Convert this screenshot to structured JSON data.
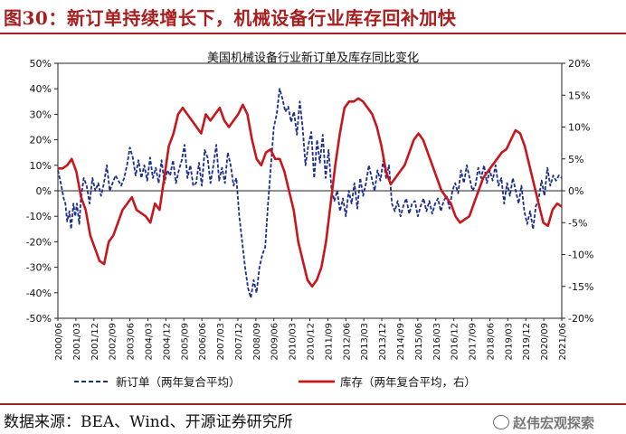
{
  "figure": {
    "title": "图30：新订单持续增长下，机械设备行业库存回补加快",
    "source": "数据来源：BEA、Wind、开源证券研究所",
    "watermark": "赵伟宏观探索",
    "watermark_icon": "wechat-icon"
  },
  "chart_data": {
    "type": "line",
    "title": "美国机械设备行业新订单及库存同比变化",
    "x_labels": [
      "2000/06",
      "2001/03",
      "2001/12",
      "2002/09",
      "2003/06",
      "2004/03",
      "2004/12",
      "2005/09",
      "2006/06",
      "2007/03",
      "2007/12",
      "2008/09",
      "2009/06",
      "2010/03",
      "2010/12",
      "2011/09",
      "2012/06",
      "2013/03",
      "2013/12",
      "2014/09",
      "2015/06",
      "2016/03",
      "2016/12",
      "2017/09",
      "2018/06",
      "2019/03",
      "2019/12",
      "2020/09",
      "2021/06"
    ],
    "left_axis": {
      "ticks": [
        "50%",
        "40%",
        "30%",
        "20%",
        "10%",
        "0%",
        "-10%",
        "-20%",
        "-30%",
        "-40%",
        "-50%"
      ],
      "min": -50,
      "max": 50
    },
    "right_axis": {
      "ticks": [
        "20%",
        "15%",
        "10%",
        "5%",
        "0%",
        "-5%",
        "-10%",
        "-15%",
        "-20%"
      ],
      "min": -20,
      "max": 20
    },
    "legend_position": "bottom",
    "series": [
      {
        "name": "新订单（两年复合平均）",
        "axis": "left",
        "color": "#1c2e8c",
        "style": "dashed",
        "points": [
          [
            0,
            8
          ],
          [
            0.5,
            3
          ],
          [
            1,
            -3
          ],
          [
            1.3,
            -5
          ],
          [
            1.6,
            -12
          ],
          [
            2,
            -8
          ],
          [
            2.3,
            -15
          ],
          [
            2.7,
            -5
          ],
          [
            3,
            -10
          ],
          [
            3.3,
            -5
          ],
          [
            3.7,
            -13
          ],
          [
            4,
            -3
          ],
          [
            4.5,
            5
          ],
          [
            5,
            2
          ],
          [
            5.5,
            -5
          ],
          [
            6,
            5
          ],
          [
            6.5,
            0
          ],
          [
            7,
            3
          ],
          [
            7.5,
            -2
          ],
          [
            8,
            3
          ],
          [
            8.5,
            10
          ],
          [
            9,
            0
          ],
          [
            9.5,
            3
          ],
          [
            10,
            6
          ],
          [
            10.5,
            4
          ],
          [
            11,
            2
          ],
          [
            11.5,
            5
          ],
          [
            12,
            10
          ],
          [
            12.5,
            17
          ],
          [
            13,
            13
          ],
          [
            13.5,
            6
          ],
          [
            14,
            12
          ],
          [
            14.5,
            5
          ],
          [
            15,
            10
          ],
          [
            15.5,
            4
          ],
          [
            16,
            13
          ],
          [
            16.5,
            5
          ],
          [
            17,
            9
          ],
          [
            17.5,
            3
          ],
          [
            18,
            12
          ],
          [
            18.5,
            3
          ],
          [
            19,
            8
          ],
          [
            19.5,
            6
          ],
          [
            20,
            12
          ],
          [
            20.5,
            3
          ],
          [
            21,
            8
          ],
          [
            21.5,
            12
          ],
          [
            22,
            18
          ],
          [
            22.5,
            5
          ],
          [
            23,
            10
          ],
          [
            23.5,
            2
          ],
          [
            24,
            3
          ],
          [
            24.5,
            11
          ],
          [
            25,
            2
          ],
          [
            25.5,
            16
          ],
          [
            26,
            13
          ],
          [
            26.5,
            3
          ],
          [
            27,
            10
          ],
          [
            27.5,
            18
          ],
          [
            28,
            4
          ],
          [
            28.5,
            9
          ],
          [
            29,
            3
          ],
          [
            29.5,
            15
          ],
          [
            30,
            10
          ],
          [
            30.5,
            2
          ],
          [
            31,
            5
          ],
          [
            31.5,
            -10
          ],
          [
            32,
            -20
          ],
          [
            32.5,
            -30
          ],
          [
            33,
            -38
          ],
          [
            33.5,
            -42
          ],
          [
            34,
            -35
          ],
          [
            34.5,
            -40
          ],
          [
            35,
            -30
          ],
          [
            35.5,
            -25
          ],
          [
            36,
            -22
          ],
          [
            36.5,
            -5
          ],
          [
            37,
            10
          ],
          [
            37.5,
            25
          ],
          [
            38,
            30
          ],
          [
            38.5,
            40
          ],
          [
            39,
            36
          ],
          [
            39.5,
            31
          ],
          [
            40,
            33
          ],
          [
            40.5,
            27
          ],
          [
            41,
            31
          ],
          [
            41.5,
            22
          ],
          [
            42,
            35
          ],
          [
            42.5,
            25
          ],
          [
            43,
            10
          ],
          [
            43.5,
            18
          ],
          [
            44,
            23
          ],
          [
            44.5,
            5
          ],
          [
            45,
            20
          ],
          [
            45.5,
            11
          ],
          [
            46,
            22
          ],
          [
            46.5,
            5
          ],
          [
            47,
            16
          ],
          [
            47.5,
            1
          ],
          [
            48,
            -4
          ],
          [
            48.5,
            0
          ],
          [
            49,
            -8
          ],
          [
            49.5,
            -3
          ],
          [
            50,
            -10
          ],
          [
            50.5,
            0
          ],
          [
            51,
            -5
          ],
          [
            51.5,
            3
          ],
          [
            52,
            -7
          ],
          [
            52.5,
            5
          ],
          [
            53,
            -2
          ],
          [
            53.5,
            3
          ],
          [
            54,
            10
          ],
          [
            54.5,
            5
          ],
          [
            55,
            0
          ],
          [
            55.5,
            8
          ],
          [
            56,
            4
          ],
          [
            56.5,
            12
          ],
          [
            57,
            5
          ],
          [
            57.5,
            10
          ],
          [
            58,
            -5
          ],
          [
            58.5,
            -8
          ],
          [
            59,
            -4
          ],
          [
            59.5,
            -10
          ],
          [
            60,
            -6
          ],
          [
            60.5,
            -3
          ],
          [
            61,
            -9
          ],
          [
            61.5,
            -5
          ],
          [
            62,
            -4
          ],
          [
            62.5,
            -10
          ],
          [
            63,
            -6
          ],
          [
            63.5,
            -3
          ],
          [
            64,
            -8
          ],
          [
            64.5,
            -4
          ],
          [
            65,
            -9
          ],
          [
            65.5,
            -5
          ],
          [
            66,
            -3
          ],
          [
            66.5,
            -8
          ],
          [
            67,
            -4
          ],
          [
            67.5,
            -2
          ],
          [
            68,
            -7
          ],
          [
            68.5,
            0
          ],
          [
            69,
            3
          ],
          [
            69.5,
            -1
          ],
          [
            70,
            8
          ],
          [
            70.5,
            3
          ],
          [
            71,
            10
          ],
          [
            71.5,
            5
          ],
          [
            72,
            0
          ],
          [
            72.5,
            2
          ],
          [
            73,
            9
          ],
          [
            73.5,
            5
          ],
          [
            74,
            10
          ],
          [
            74.5,
            3
          ],
          [
            75,
            8
          ],
          [
            75.5,
            4
          ],
          [
            76,
            10
          ],
          [
            76.5,
            2
          ],
          [
            77,
            5
          ],
          [
            77.5,
            -5
          ],
          [
            78,
            3
          ],
          [
            78.5,
            -2
          ],
          [
            79,
            5
          ],
          [
            79.5,
            0
          ],
          [
            80,
            -5
          ],
          [
            80.5,
            2
          ],
          [
            81,
            -8
          ],
          [
            81.5,
            -13
          ],
          [
            82,
            -8
          ],
          [
            82.5,
            -15
          ],
          [
            83,
            -6
          ],
          [
            83.5,
            -3
          ],
          [
            84,
            4
          ],
          [
            84.5,
            -2
          ],
          [
            85,
            9
          ],
          [
            85.5,
            2
          ],
          [
            86,
            6
          ],
          [
            86.5,
            4
          ],
          [
            87,
            6
          ],
          [
            87.5,
            5
          ]
        ]
      },
      {
        "name": "库存（两年复合平均，右）",
        "axis": "right",
        "color": "#c8161d",
        "style": "solid",
        "points": [
          [
            0,
            3.5
          ],
          [
            1,
            3.5
          ],
          [
            2,
            4
          ],
          [
            3,
            5
          ],
          [
            4,
            3
          ],
          [
            5,
            -1
          ],
          [
            6,
            -3
          ],
          [
            7,
            -7
          ],
          [
            8,
            -9
          ],
          [
            9,
            -11
          ],
          [
            10,
            -11.5
          ],
          [
            11,
            -8
          ],
          [
            12,
            -7
          ],
          [
            13,
            -5
          ],
          [
            14,
            -3
          ],
          [
            15,
            -2
          ],
          [
            16,
            -1
          ],
          [
            17,
            -3
          ],
          [
            18,
            -3.5
          ],
          [
            19,
            -4
          ],
          [
            20,
            -5
          ],
          [
            21,
            -2
          ],
          [
            22,
            -3
          ],
          [
            23,
            2
          ],
          [
            24,
            7
          ],
          [
            25,
            9
          ],
          [
            26,
            12
          ],
          [
            27,
            13
          ],
          [
            28,
            12
          ],
          [
            29,
            11
          ],
          [
            30,
            10
          ],
          [
            31,
            9
          ],
          [
            32,
            12
          ],
          [
            33,
            11
          ],
          [
            34,
            12
          ],
          [
            35,
            13
          ],
          [
            36,
            11
          ],
          [
            37,
            10
          ],
          [
            38,
            11
          ],
          [
            39,
            12
          ],
          [
            40,
            13.5
          ],
          [
            41,
            12
          ],
          [
            42,
            8
          ],
          [
            43,
            5
          ],
          [
            44,
            4
          ],
          [
            45,
            6
          ],
          [
            46,
            6.5
          ],
          [
            47,
            5
          ],
          [
            48,
            5
          ],
          [
            49,
            3
          ],
          [
            50,
            0
          ],
          [
            51,
            -3
          ],
          [
            52,
            -8
          ],
          [
            53,
            -11
          ],
          [
            54,
            -14
          ],
          [
            55,
            -15
          ],
          [
            56,
            -14
          ],
          [
            57,
            -12
          ],
          [
            58,
            -8
          ],
          [
            59,
            -2
          ],
          [
            60,
            4
          ],
          [
            61,
            9
          ],
          [
            62,
            13
          ],
          [
            63,
            14
          ],
          [
            64,
            14
          ],
          [
            65,
            14.5
          ],
          [
            66,
            14
          ],
          [
            67,
            13
          ],
          [
            68,
            12
          ],
          [
            69,
            10
          ],
          [
            70,
            7
          ],
          [
            71,
            3
          ],
          [
            72,
            1
          ],
          [
            73,
            2
          ],
          [
            74,
            3
          ],
          [
            75,
            4
          ],
          [
            76,
            6
          ],
          [
            77,
            8
          ],
          [
            78,
            9
          ],
          [
            79,
            8
          ],
          [
            80,
            6
          ],
          [
            81,
            4
          ],
          [
            82,
            2
          ],
          [
            83,
            0
          ],
          [
            84,
            -1
          ],
          [
            85,
            -2
          ],
          [
            86,
            -4
          ],
          [
            87,
            -5
          ],
          [
            88,
            -4.5
          ],
          [
            89,
            -4
          ],
          [
            90,
            -2
          ],
          [
            91,
            0
          ],
          [
            92,
            2
          ],
          [
            93,
            3
          ],
          [
            94,
            4
          ],
          [
            95,
            5
          ],
          [
            96,
            6
          ],
          [
            97,
            6.5
          ],
          [
            98,
            8
          ],
          [
            99,
            9.5
          ],
          [
            100,
            9
          ],
          [
            101,
            7
          ],
          [
            102,
            4
          ],
          [
            103,
            1
          ],
          [
            104,
            -2
          ],
          [
            105,
            -5
          ],
          [
            106,
            -5.5
          ],
          [
            107,
            -3
          ],
          [
            108,
            -2
          ],
          [
            109,
            -2.5
          ]
        ]
      }
    ],
    "legend": [
      {
        "label": "新订单（两年复合平均）",
        "color": "#1c2e8c",
        "style": "dashed"
      },
      {
        "label": "库存（两年复合平均，右）",
        "color": "#c8161d",
        "style": "solid"
      }
    ]
  }
}
